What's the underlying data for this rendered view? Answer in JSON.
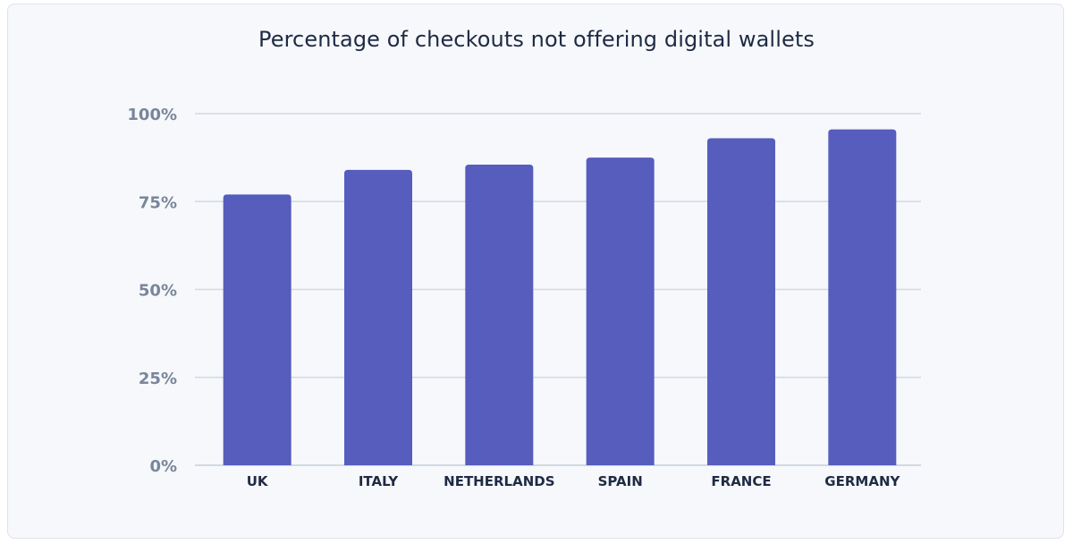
{
  "chart_data": {
    "type": "bar",
    "title": "Percentage of checkouts not offering digital wallets",
    "categories": [
      "UK",
      "ITALY",
      "NETHERLANDS",
      "SPAIN",
      "FRANCE",
      "GERMANY"
    ],
    "values": [
      77,
      84,
      85.5,
      87.5,
      93,
      95.5
    ],
    "xlabel": "",
    "ylabel": "",
    "ylim": [
      0,
      100
    ],
    "yticks": [
      0,
      25,
      50,
      75,
      100
    ],
    "ytick_labels": [
      "0%",
      "25%",
      "50%",
      "75%",
      "100%"
    ],
    "grid": true,
    "legend": "none"
  },
  "colors": {
    "bar": "#565dbd",
    "grid": "#d3d8e1",
    "background": "#f6f8fb"
  }
}
